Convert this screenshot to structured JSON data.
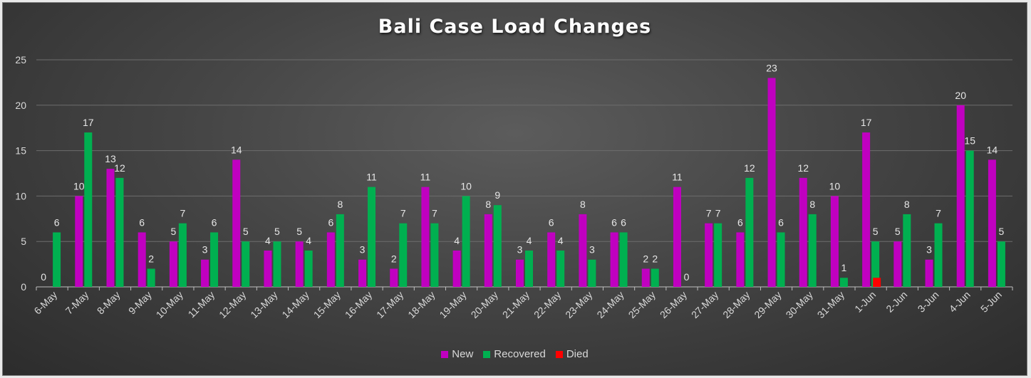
{
  "chart_data": {
    "type": "bar",
    "title": "Bali Case Load Changes",
    "xlabel": "",
    "ylabel": "",
    "ylim": [
      0,
      25
    ],
    "yticks": [
      "0",
      "5",
      "10",
      "15",
      "20",
      "25"
    ],
    "grid": true,
    "legend_position": "bottom",
    "categories": [
      "6-May",
      "7-May",
      "8-May",
      "9-May",
      "10-May",
      "11-May",
      "12-May",
      "13-May",
      "14-May",
      "15-May",
      "16-May",
      "17-May",
      "18-May",
      "19-May",
      "20-May",
      "21-May",
      "22-May",
      "23-May",
      "24-May",
      "25-May",
      "26-May",
      "27-May",
      "28-May",
      "29-May",
      "30-May",
      "31-May",
      "1-Jun",
      "2-Jun",
      "3-Jun",
      "4-Jun",
      "5-Jun"
    ],
    "series": [
      {
        "name": "New",
        "color": "#c000c0",
        "values": [
          0,
          10,
          13,
          6,
          5,
          3,
          14,
          4,
          5,
          6,
          3,
          2,
          11,
          4,
          8,
          3,
          6,
          8,
          6,
          2,
          11,
          7,
          6,
          23,
          12,
          10,
          17,
          5,
          3,
          20,
          14
        ],
        "labels": [
          "0",
          "10",
          "13",
          "6",
          "5",
          "3",
          "14",
          "4",
          "5",
          "6",
          "3",
          "2",
          "11",
          "4",
          "8",
          "3",
          "6",
          "8",
          "6",
          "2",
          "11",
          "7",
          "6",
          "23",
          "12",
          "10",
          "17",
          "5",
          "3",
          "20",
          "14"
        ]
      },
      {
        "name": "Recovered",
        "color": "#00b050",
        "values": [
          6,
          17,
          12,
          2,
          7,
          6,
          5,
          5,
          4,
          8,
          11,
          7,
          7,
          10,
          9,
          4,
          4,
          3,
          6,
          2,
          0,
          7,
          12,
          6,
          8,
          1,
          5,
          8,
          7,
          15,
          5
        ],
        "labels": [
          "6",
          "17",
          "12",
          "2",
          "7",
          "6",
          "5",
          "5",
          "4",
          "8",
          "11",
          "7",
          "7",
          "10",
          "9",
          "4",
          "4",
          "3",
          "6",
          "2",
          "0",
          "7",
          "12",
          "6",
          "8",
          "1",
          "5",
          "8",
          "7",
          "15",
          "5"
        ]
      },
      {
        "name": "Died",
        "color": "#ff0000",
        "values": [
          null,
          null,
          null,
          null,
          null,
          null,
          null,
          null,
          null,
          null,
          null,
          null,
          null,
          null,
          null,
          null,
          null,
          null,
          null,
          null,
          null,
          null,
          null,
          null,
          null,
          null,
          1,
          null,
          null,
          null,
          null
        ],
        "labels": []
      }
    ]
  }
}
